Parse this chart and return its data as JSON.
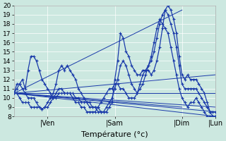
{
  "xlabel": "Température (°c)",
  "xlim": [
    0,
    72
  ],
  "ylim": [
    8,
    20
  ],
  "yticks": [
    8,
    9,
    10,
    11,
    12,
    13,
    14,
    15,
    16,
    17,
    18,
    19,
    20
  ],
  "xtick_positions": [
    12,
    36,
    60,
    72
  ],
  "xtick_labels": [
    "|Ven",
    "|Sam",
    "|Dim",
    "|Lun"
  ],
  "bg_color": "#cce8e0",
  "grid_color": "#ffffff",
  "line_color": "#1a3aaa",
  "straight_origin_x": 0,
  "straight_origin_y": 10.5,
  "straight_endpoints": [
    [
      72,
      12.5
    ],
    [
      72,
      10.5
    ],
    [
      72,
      9.0
    ],
    [
      72,
      8.5
    ],
    [
      72,
      8.0
    ],
    [
      60,
      19.5
    ],
    [
      60,
      9.0
    ]
  ],
  "detailed_curves": [
    {
      "x": [
        0,
        1,
        2,
        3,
        4,
        5,
        6,
        7,
        8,
        9,
        10,
        11,
        12,
        13,
        14,
        15,
        16,
        17,
        18,
        19,
        20,
        21,
        22,
        23,
        24,
        25,
        26,
        27,
        28,
        29,
        30,
        31,
        32,
        33,
        34,
        35,
        36,
        37,
        38,
        39,
        40,
        41,
        42,
        43,
        44,
        45,
        46,
        47,
        48,
        49,
        50,
        51,
        52,
        53,
        54,
        55,
        56,
        57,
        58,
        59,
        60,
        61,
        62,
        63,
        64,
        65,
        66,
        67,
        68,
        69,
        70,
        71,
        72
      ],
      "y": [
        10.5,
        11.0,
        11.5,
        12.0,
        11.0,
        13.0,
        14.5,
        14.5,
        14.0,
        13.0,
        12.0,
        11.5,
        11.0,
        10.5,
        10.0,
        10.0,
        10.5,
        10.5,
        10.5,
        10.5,
        10.5,
        10.5,
        10.0,
        10.0,
        9.5,
        9.5,
        9.5,
        9.5,
        9.0,
        9.0,
        9.0,
        8.5,
        8.5,
        8.5,
        9.0,
        9.5,
        12.0,
        14.0,
        17.0,
        16.5,
        15.0,
        14.5,
        13.5,
        13.0,
        12.5,
        12.5,
        13.0,
        13.0,
        13.0,
        12.5,
        13.0,
        14.0,
        15.5,
        17.5,
        19.5,
        20.0,
        19.5,
        18.5,
        17.0,
        14.5,
        12.5,
        12.0,
        12.5,
        12.0,
        12.0,
        12.0,
        11.5,
        11.0,
        10.5,
        9.5,
        8.5,
        8.5,
        8.5
      ]
    },
    {
      "x": [
        0,
        1,
        2,
        3,
        4,
        5,
        6,
        7,
        8,
        9,
        10,
        11,
        12,
        13,
        14,
        15,
        16,
        17,
        18,
        19,
        20,
        21,
        22,
        23,
        24,
        25,
        26,
        27,
        28,
        29,
        30,
        31,
        32,
        33,
        34,
        35,
        36,
        37,
        38,
        39,
        40,
        41,
        42,
        43,
        44,
        45,
        46,
        47,
        48,
        49,
        50,
        51,
        52,
        53,
        54,
        55,
        56,
        57,
        58,
        59,
        60,
        61,
        62,
        63,
        64,
        65,
        66,
        67,
        68,
        69,
        70,
        71,
        72
      ],
      "y": [
        10.5,
        11.5,
        11.5,
        11.0,
        10.5,
        10.0,
        10.0,
        10.0,
        9.5,
        9.0,
        8.8,
        9.0,
        9.5,
        10.0,
        10.5,
        11.5,
        13.0,
        13.5,
        13.0,
        13.5,
        13.0,
        12.5,
        12.0,
        11.0,
        10.5,
        10.0,
        9.5,
        9.0,
        9.0,
        9.0,
        8.5,
        8.5,
        8.5,
        9.0,
        9.5,
        10.0,
        11.0,
        12.0,
        13.5,
        14.0,
        13.5,
        12.5,
        11.5,
        11.0,
        10.5,
        11.5,
        12.5,
        13.0,
        13.5,
        14.0,
        15.0,
        16.5,
        18.0,
        19.0,
        19.5,
        19.0,
        18.0,
        17.0,
        15.5,
        13.5,
        11.5,
        11.0,
        11.0,
        11.0,
        11.0,
        11.0,
        10.5,
        10.0,
        9.5,
        9.0,
        8.5,
        8.0,
        8.0
      ]
    },
    {
      "x": [
        0,
        1,
        2,
        3,
        4,
        5,
        6,
        7,
        8,
        9,
        10,
        11,
        12,
        13,
        14,
        15,
        16,
        17,
        18,
        19,
        20,
        21,
        22,
        23,
        24,
        25,
        26,
        27,
        28,
        29,
        30,
        31,
        32,
        33,
        34,
        35,
        36,
        37,
        38,
        39,
        40,
        41,
        42,
        43,
        44,
        45,
        46,
        47,
        48,
        49,
        50,
        51,
        52,
        53,
        54,
        55,
        56,
        57,
        58,
        59,
        60,
        61,
        62,
        63,
        64,
        65,
        66,
        67,
        68,
        69,
        70,
        71,
        72
      ],
      "y": [
        10.5,
        10.5,
        10.0,
        9.5,
        9.5,
        9.5,
        9.0,
        9.0,
        9.0,
        9.0,
        8.8,
        9.0,
        9.0,
        9.5,
        10.0,
        10.5,
        11.0,
        11.0,
        10.5,
        10.5,
        10.5,
        10.0,
        9.5,
        9.5,
        9.0,
        9.0,
        8.5,
        8.5,
        8.5,
        8.5,
        9.0,
        9.5,
        10.0,
        10.5,
        11.0,
        11.0,
        11.5,
        11.5,
        11.0,
        11.0,
        10.5,
        10.0,
        10.0,
        10.0,
        10.5,
        11.0,
        11.5,
        12.5,
        13.5,
        14.5,
        16.0,
        17.5,
        18.5,
        18.0,
        17.5,
        17.0,
        15.5,
        14.0,
        12.5,
        11.0,
        10.0,
        9.5,
        9.0,
        9.5,
        9.5,
        10.0,
        9.5,
        9.0,
        8.5,
        8.0,
        8.0,
        8.0,
        8.0
      ]
    }
  ]
}
